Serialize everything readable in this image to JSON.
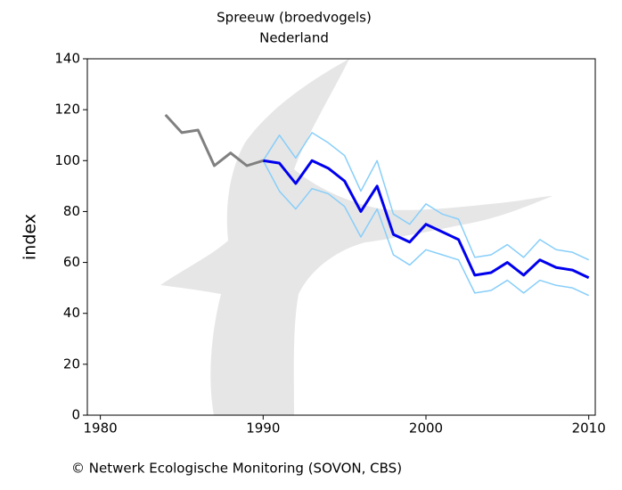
{
  "chart_data": {
    "type": "line",
    "title": "Spreeuw (broedvogels)",
    "subtitle": "Nederland",
    "y_label": "index",
    "source": "© Netwerk Ecologische Monitoring (SOVON, CBS)",
    "x": [
      1984,
      1985,
      1986,
      1987,
      1988,
      1989,
      1990,
      1991,
      1992,
      1993,
      1994,
      1995,
      1996,
      1997,
      1998,
      1999,
      2000,
      2001,
      2002,
      2003,
      2004,
      2005,
      2006,
      2007,
      2008,
      2009,
      2010
    ],
    "series": [
      {
        "color": "#87cefa",
        "values": [
          null,
          null,
          null,
          null,
          null,
          null,
          100,
          110,
          101,
          111,
          107,
          102,
          88,
          100,
          79,
          75,
          83,
          79,
          77,
          62,
          63,
          67,
          62,
          69,
          65,
          64,
          61
        ]
      },
      {
        "color": "#87cefa",
        "values": [
          null,
          null,
          null,
          null,
          null,
          null,
          100,
          88,
          81,
          89,
          87,
          82,
          70,
          81,
          63,
          59,
          65,
          63,
          61,
          48,
          49,
          53,
          48,
          53,
          51,
          50,
          47
        ]
      },
      {
        "color": "#808080",
        "values": [
          118,
          111,
          112,
          98,
          103,
          98,
          100,
          null,
          null,
          null,
          null,
          null,
          null,
          null,
          null,
          null,
          null,
          null,
          null,
          null,
          null,
          null,
          null,
          null,
          null,
          null,
          null
        ]
      },
      {
        "color": "#0000ee",
        "values": [
          null,
          null,
          null,
          null,
          null,
          null,
          100,
          99,
          91,
          100,
          97,
          92,
          80,
          90,
          71,
          68,
          75,
          72,
          69,
          55,
          56,
          60,
          55,
          61,
          58,
          57,
          54
        ]
      }
    ],
    "xlim": [
      1979.2,
      2010.4
    ],
    "xticks": [
      1980,
      1990,
      2000,
      2010
    ],
    "ylim": [
      0,
      140
    ],
    "yticks": [
      0,
      20,
      40,
      60,
      80,
      100,
      120,
      140
    ]
  }
}
